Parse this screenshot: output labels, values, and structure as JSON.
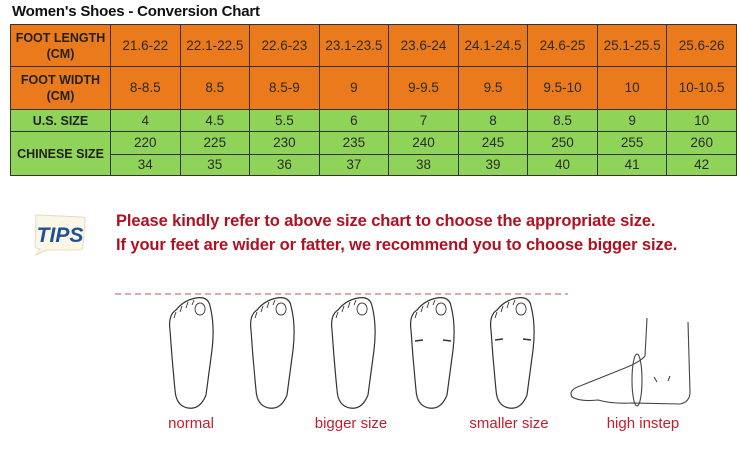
{
  "title": "Women's Shoes - Conversion Chart",
  "table": {
    "foot_length": {
      "label_line1": "FOOT LENGTH",
      "label_line2": "(CM)",
      "values": [
        "21.6-22",
        "22.1-22.5",
        "22.6-23",
        "23.1-23.5",
        "23.6-24",
        "24.1-24.5",
        "24.6-25",
        "25.1-25.5",
        "25.6-26"
      ]
    },
    "foot_width": {
      "label_line1": "FOOT WIDTH",
      "label_line2": "(CM)",
      "values": [
        "8-8.5",
        "8.5",
        "8.5-9",
        "9",
        "9-9.5",
        "9.5",
        "9.5-10",
        "10",
        "10-10.5"
      ]
    },
    "us_size": {
      "label": "U.S. SIZE",
      "values": [
        "4",
        "4.5",
        "5.5",
        "6",
        "7",
        "8",
        "8.5",
        "9",
        "10"
      ]
    },
    "chinese_size": {
      "label": "CHINESE SIZE",
      "values_mm": [
        "220",
        "225",
        "230",
        "235",
        "240",
        "245",
        "250",
        "255",
        "260"
      ],
      "values_eu": [
        "34",
        "35",
        "36",
        "37",
        "38",
        "39",
        "40",
        "41",
        "42"
      ]
    },
    "colors": {
      "orange": "#ea7a1c",
      "green": "#8fd458"
    }
  },
  "tips": {
    "icon_text": "TIPS",
    "line1": "Please kindly refer to above size chart to choose the appropriate size.",
    "line2": "If your feet are wider or fatter, we recommend you to choose bigger size.",
    "color": "#b01020"
  },
  "illustrations": {
    "labels": [
      "normal",
      "bigger size",
      "smaller size",
      "high instep"
    ]
  }
}
